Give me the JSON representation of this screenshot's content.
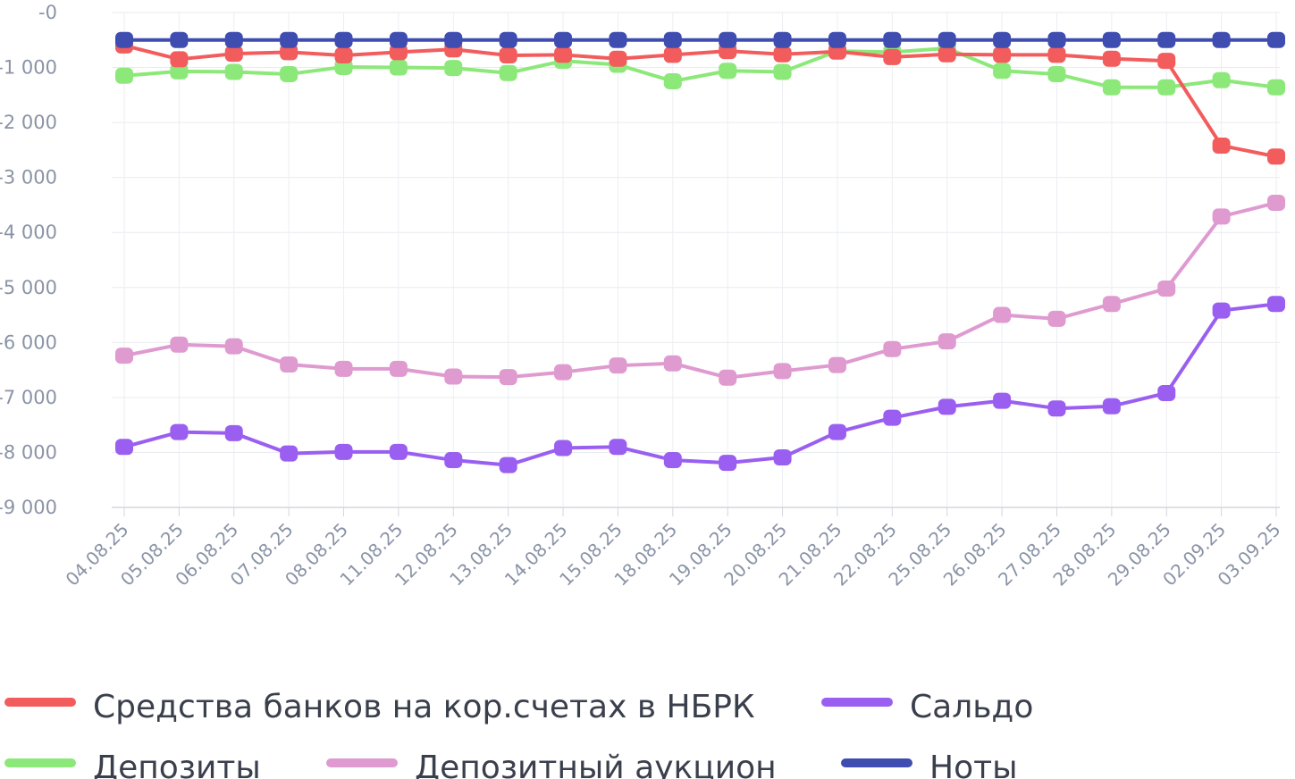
{
  "chart_data": {
    "type": "line",
    "title": "",
    "xlabel": "",
    "ylabel": "",
    "ylim": [
      -9000,
      0
    ],
    "grid": true,
    "legend_position": "bottom",
    "y_ticks": [
      "-0",
      "-1 000",
      "-2 000",
      "-3 000",
      "-4 000",
      "-5 000",
      "-6 000",
      "-7 000",
      "-8 000",
      "-9 000"
    ],
    "categories": [
      "04.08.25",
      "05.08.25",
      "06.08.25",
      "07.08.25",
      "08.08.25",
      "11.08.25",
      "12.08.25",
      "13.08.25",
      "14.08.25",
      "15.08.25",
      "18.08.25",
      "19.08.25",
      "20.08.25",
      "21.08.25",
      "22.08.25",
      "25.08.25",
      "26.08.25",
      "27.08.25",
      "28.08.25",
      "29.08.25",
      "02.09.25",
      "03.09.25"
    ],
    "series": [
      {
        "name": "Средства банков на кор.счетах в НБРК",
        "color": "#f25c5c",
        "values": [
          -600,
          -850,
          -750,
          -720,
          -780,
          -720,
          -670,
          -780,
          -770,
          -840,
          -770,
          -700,
          -760,
          -710,
          -810,
          -760,
          -770,
          -770,
          -840,
          -880,
          -2420,
          -2620
        ]
      },
      {
        "name": "Депозиты",
        "color": "#8de87a",
        "values": [
          -1150,
          -1070,
          -1080,
          -1120,
          -990,
          -1000,
          -1010,
          -1100,
          -880,
          -950,
          -1250,
          -1060,
          -1080,
          -700,
          -720,
          -650,
          -1060,
          -1120,
          -1360,
          -1360,
          -1230,
          -1360
        ]
      },
      {
        "name": "Сальдо",
        "color": "#9a5ff0",
        "values": [
          -7900,
          -7630,
          -7650,
          -8020,
          -7990,
          -7990,
          -8140,
          -8230,
          -7920,
          -7900,
          -8140,
          -8190,
          -8090,
          -7630,
          -7370,
          -7170,
          -7060,
          -7200,
          -7160,
          -6920,
          -5420,
          -5300
        ]
      },
      {
        "name": "Депозитный аукцион",
        "color": "#df9ad0",
        "values": [
          -6240,
          -6040,
          -6070,
          -6400,
          -6480,
          -6480,
          -6620,
          -6630,
          -6540,
          -6420,
          -6380,
          -6640,
          -6520,
          -6410,
          -6120,
          -5980,
          -5500,
          -5570,
          -5300,
          -5020,
          -3710,
          -3460
        ]
      },
      {
        "name": "Ноты",
        "color": "#3f4db0",
        "values": [
          -500,
          -500,
          -500,
          -500,
          -500,
          -500,
          -500,
          -500,
          -500,
          -500,
          -500,
          -500,
          -500,
          -500,
          -500,
          -500,
          -500,
          -500,
          -500,
          -500,
          -500,
          -500
        ]
      }
    ]
  }
}
